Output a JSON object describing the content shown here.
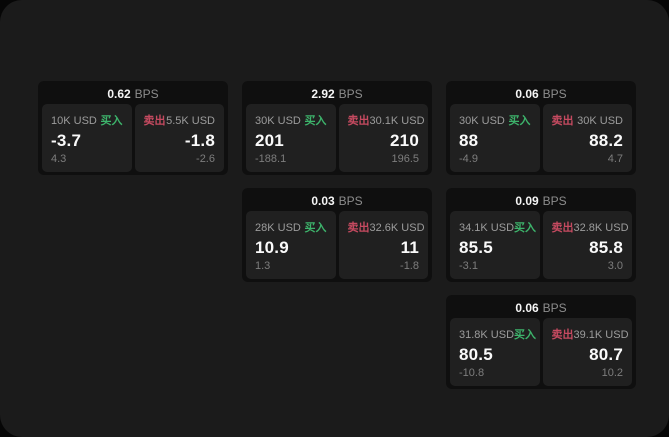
{
  "labels": {
    "bps_unit": "BPS",
    "buy": "买入",
    "sell": "卖出"
  },
  "colors": {
    "page_bg": "#1b1b1b",
    "card_bg": "#0f0f0f",
    "panel_bg": "#202020",
    "buy_green": "#3db36b",
    "sell_red": "#c54a60",
    "value_text": "#fafafa",
    "muted_text": "#8d8d8d"
  },
  "cards": [
    {
      "row": 1,
      "col": 1,
      "bps": "0.62",
      "buy": {
        "amount": "10K USD",
        "value": "-3.7",
        "sub": "4.3"
      },
      "sell": {
        "amount": "5.5K USD",
        "value": "-1.8",
        "sub": "-2.6"
      }
    },
    {
      "row": 1,
      "col": 2,
      "bps": "2.92",
      "buy": {
        "amount": "30K USD",
        "value": "201",
        "sub": "-188.1"
      },
      "sell": {
        "amount": "30.1K USD",
        "value": "210",
        "sub": "196.5"
      }
    },
    {
      "row": 1,
      "col": 3,
      "bps": "0.06",
      "buy": {
        "amount": "30K USD",
        "value": "88",
        "sub": "-4.9"
      },
      "sell": {
        "amount": "30K USD",
        "value": "88.2",
        "sub": "4.7"
      }
    },
    {
      "row": 2,
      "col": 2,
      "bps": "0.03",
      "buy": {
        "amount": "28K USD",
        "value": "10.9",
        "sub": "1.3"
      },
      "sell": {
        "amount": "32.6K USD",
        "value": "11",
        "sub": "-1.8"
      }
    },
    {
      "row": 2,
      "col": 3,
      "bps": "0.09",
      "buy": {
        "amount": "34.1K USD",
        "value": "85.5",
        "sub": "-3.1"
      },
      "sell": {
        "amount": "32.8K USD",
        "value": "85.8",
        "sub": "3.0"
      }
    },
    {
      "row": 3,
      "col": 3,
      "bps": "0.06",
      "buy": {
        "amount": "31.8K USD",
        "value": "80.5",
        "sub": "-10.8"
      },
      "sell": {
        "amount": "39.1K USD",
        "value": "80.7",
        "sub": "10.2"
      }
    }
  ]
}
